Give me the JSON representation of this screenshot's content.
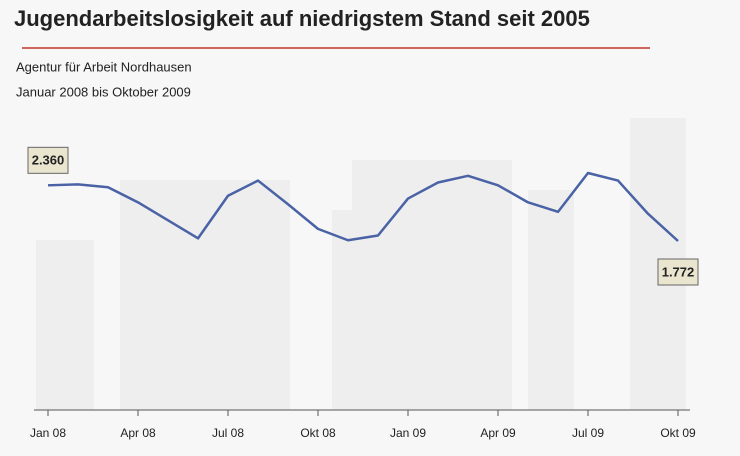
{
  "chart_data": {
    "type": "line",
    "title": "Jugendarbeitslosigkeit auf niedrigstem Stand seit 2005",
    "subtitle": [
      "Agentur für Arbeit Nordhausen",
      "Januar 2008 bis Oktober 2009"
    ],
    "categories": [
      "Jan 08",
      null,
      null,
      "Apr 08",
      null,
      null,
      "Jul 08",
      null,
      null,
      "Okt 08",
      null,
      null,
      "Jan 09",
      null,
      null,
      "Apr 09",
      null,
      null,
      "Jul 09",
      null,
      null,
      "Okt 09"
    ],
    "values": [
      2360,
      2370,
      2340,
      2180,
      1990,
      1800,
      2250,
      2410,
      2160,
      1900,
      1780,
      1830,
      2220,
      2390,
      2460,
      2360,
      2180,
      2080,
      2490,
      2410,
      2060,
      1772
    ],
    "value_labels": [
      "2.360",
      null,
      null,
      null,
      null,
      null,
      null,
      null,
      null,
      null,
      null,
      null,
      null,
      null,
      null,
      null,
      null,
      null,
      null,
      null,
      null,
      "1.772"
    ],
    "color": "#4a62a6"
  }
}
